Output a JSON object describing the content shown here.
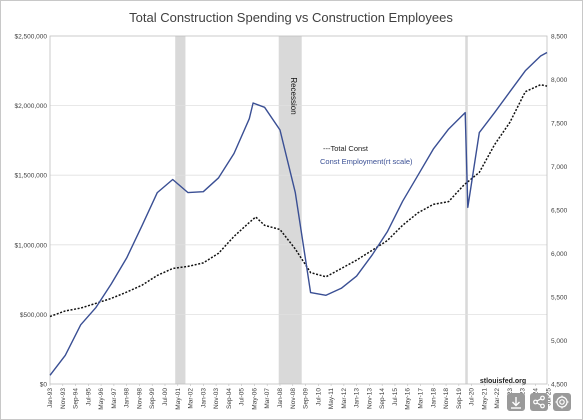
{
  "chart_data": {
    "type": "line",
    "title": "Total Construction Spending vs Construction Employees",
    "x_tick_labels": [
      "Jan-93",
      "Nov-93",
      "Sep-94",
      "Jul-95",
      "May-96",
      "Mar-97",
      "Jan-98",
      "Nov-98",
      "Sep-99",
      "Jul-00",
      "May-01",
      "Mar-02",
      "Jan-03",
      "Nov-03",
      "Sep-04",
      "Jul-05",
      "May-06",
      "Mar-07",
      "Jan-08",
      "Nov-08",
      "Sep-09",
      "Jul-10",
      "May-11",
      "Mar-12",
      "Jan-13",
      "Nov-13",
      "Sep-14",
      "Jul-15",
      "May-16",
      "Mar-17",
      "Jan-18",
      "Nov-18",
      "Sep-19",
      "Jul-20",
      "May-21",
      "Mar-22",
      "Jan-23",
      "Nov-23",
      "Sep-24",
      "Jul-25"
    ],
    "x_range": [
      "Jan-93",
      "Jun-25"
    ],
    "y_left": {
      "tick_labels": [
        "$0",
        "$500,000",
        "$1,000,000",
        "$1,500,000",
        "$2,000,000",
        "$2,500,000"
      ],
      "range": [
        0,
        2500000
      ]
    },
    "y_right": {
      "tick_labels": [
        "4,500",
        "5,000",
        "5,500",
        "6,000",
        "6,500",
        "7,000",
        "7,500",
        "8,000",
        "8,500"
      ],
      "range": [
        4500,
        8500
      ]
    },
    "legend": {
      "placement": "center-right",
      "entries": [
        "---Total Const",
        "Const Employment(rt scale)"
      ]
    },
    "recession_label": "Recession",
    "recessions": [
      {
        "start": "Mar-01",
        "end": "Nov-01"
      },
      {
        "start": "Dec-07",
        "end": "Jun-09"
      },
      {
        "start": "Feb-20",
        "end": "Apr-20"
      }
    ],
    "series": [
      {
        "name": "---Total Const",
        "axis": "left",
        "style": "dotted",
        "color": "#111111",
        "points": [
          [
            "Jan-93",
            485000
          ],
          [
            "Jan-94",
            525000
          ],
          [
            "Jan-95",
            545000
          ],
          [
            "Jan-96",
            580000
          ],
          [
            "Jan-97",
            615000
          ],
          [
            "Jan-98",
            660000
          ],
          [
            "Jan-99",
            710000
          ],
          [
            "Jan-00",
            780000
          ],
          [
            "Jan-01",
            830000
          ],
          [
            "Jan-02",
            845000
          ],
          [
            "Jan-03",
            870000
          ],
          [
            "Jan-04",
            940000
          ],
          [
            "Jan-05",
            1060000
          ],
          [
            "Jan-06",
            1160000
          ],
          [
            "Jun-06",
            1200000
          ],
          [
            "Jan-07",
            1140000
          ],
          [
            "Jan-08",
            1110000
          ],
          [
            "Jan-09",
            970000
          ],
          [
            "Jan-10",
            800000
          ],
          [
            "Jan-11",
            770000
          ],
          [
            "Jan-12",
            830000
          ],
          [
            "Jan-13",
            890000
          ],
          [
            "Jan-14",
            960000
          ],
          [
            "Jan-15",
            1030000
          ],
          [
            "Jan-16",
            1140000
          ],
          [
            "Jan-17",
            1230000
          ],
          [
            "Jan-18",
            1290000
          ],
          [
            "Jan-19",
            1310000
          ],
          [
            "Jan-20",
            1430000
          ],
          [
            "Jan-21",
            1520000
          ],
          [
            "Jan-22",
            1720000
          ],
          [
            "Jan-23",
            1880000
          ],
          [
            "Jan-24",
            2100000
          ],
          [
            "Jan-25",
            2150000
          ],
          [
            "Jun-25",
            2140000
          ]
        ]
      },
      {
        "name": "Const Employment(rt scale)",
        "axis": "right",
        "style": "solid",
        "color": "#3a4f94",
        "points": [
          [
            "Jan-93",
            4600
          ],
          [
            "Jan-94",
            4830
          ],
          [
            "Jan-95",
            5180
          ],
          [
            "Jan-96",
            5380
          ],
          [
            "Jan-97",
            5650
          ],
          [
            "Jan-98",
            5950
          ],
          [
            "Jan-99",
            6320
          ],
          [
            "Jan-00",
            6700
          ],
          [
            "Jan-01",
            6850
          ],
          [
            "Jan-02",
            6700
          ],
          [
            "Jan-03",
            6710
          ],
          [
            "Jan-04",
            6870
          ],
          [
            "Jan-05",
            7150
          ],
          [
            "Jan-06",
            7550
          ],
          [
            "Apr-06",
            7730
          ],
          [
            "Jan-07",
            7680
          ],
          [
            "Jan-08",
            7420
          ],
          [
            "Jan-09",
            6700
          ],
          [
            "Jan-10",
            5550
          ],
          [
            "Jan-11",
            5520
          ],
          [
            "Jan-12",
            5600
          ],
          [
            "Jan-13",
            5740
          ],
          [
            "Jan-14",
            5980
          ],
          [
            "Jan-15",
            6250
          ],
          [
            "Jan-16",
            6600
          ],
          [
            "Jan-17",
            6900
          ],
          [
            "Jan-18",
            7200
          ],
          [
            "Jan-19",
            7430
          ],
          [
            "Feb-20",
            7620
          ],
          [
            "Apr-20",
            6530
          ],
          [
            "Jan-21",
            7390
          ],
          [
            "Jan-22",
            7620
          ],
          [
            "Jan-23",
            7860
          ],
          [
            "Jan-24",
            8100
          ],
          [
            "Jan-25",
            8270
          ],
          [
            "Jun-25",
            8310
          ]
        ]
      }
    ],
    "source": "stlouisfed.org"
  },
  "toolbar": {
    "buttons": [
      {
        "name": "download-button",
        "icon": "download-icon"
      },
      {
        "name": "share-button",
        "icon": "share-icon"
      },
      {
        "name": "settings-button",
        "icon": "settings-icon"
      }
    ]
  },
  "colors": {
    "background": "#ffffff",
    "frame": "#c8c8c8",
    "grid": "#e0e0e0",
    "recession": "#d9d9d9",
    "button": "#9a9a9a"
  }
}
